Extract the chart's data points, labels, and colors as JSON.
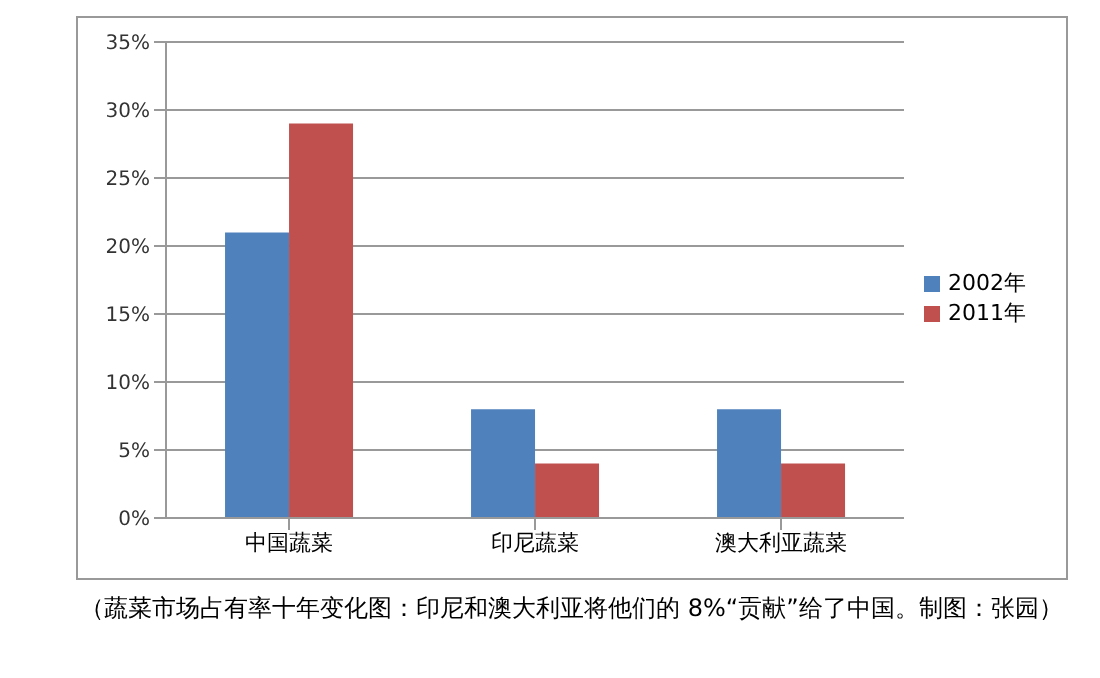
{
  "chart_data": {
    "type": "bar",
    "categories": [
      "中国蔬菜",
      "印尼蔬菜",
      "澳大利亚蔬菜"
    ],
    "series": [
      {
        "name": "2002年",
        "color": "#4f81bd",
        "values": [
          21,
          8,
          8
        ]
      },
      {
        "name": "2011年",
        "color": "#c0504d",
        "values": [
          29,
          4,
          4
        ]
      }
    ],
    "ylim": [
      0,
      35
    ],
    "yticks": [
      {
        "value": 0,
        "label": "0%"
      },
      {
        "value": 5,
        "label": "5%"
      },
      {
        "value": 10,
        "label": "10%"
      },
      {
        "value": 15,
        "label": "15%"
      },
      {
        "value": 20,
        "label": "20%"
      },
      {
        "value": 25,
        "label": "25%"
      },
      {
        "value": 30,
        "label": "30%"
      },
      {
        "value": 35,
        "label": "35%"
      }
    ],
    "grid": "y",
    "legend": "right",
    "annotations": [
      "（蔬菜市场占有率十年变化图：印尼和澳大利亚将他们的 8%“贡献”给了中国。制图：张园）"
    ]
  }
}
